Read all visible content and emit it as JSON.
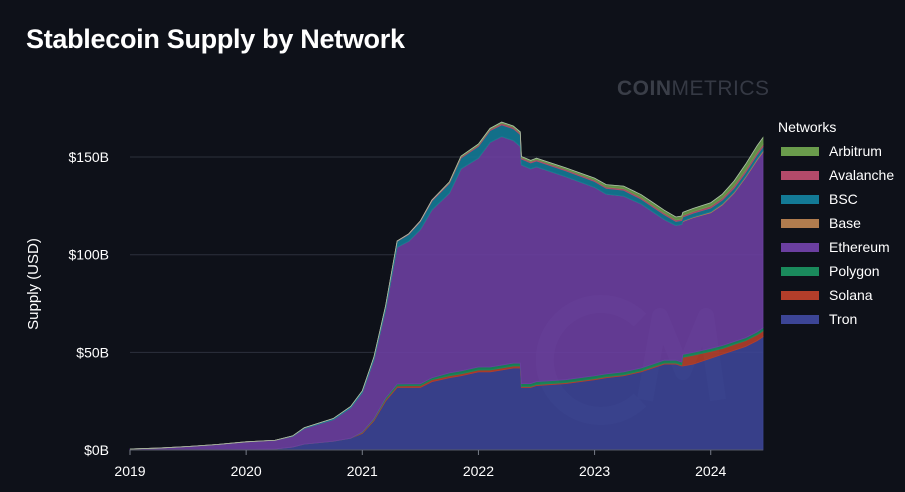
{
  "watermark": {
    "brand_bold": "COIN",
    "brand_light": "METRICS"
  },
  "chart_data": {
    "type": "area",
    "stacked": true,
    "title": "Stablecoin Supply by Network",
    "xlabel": "",
    "ylabel": "Supply (USD)",
    "x_ticks": [
      "2019",
      "2020",
      "2021",
      "2022",
      "2023",
      "2024"
    ],
    "y_ticks": [
      "$0B",
      "$50B",
      "$100B",
      "$150B"
    ],
    "y_tick_values": [
      0,
      50,
      100,
      150
    ],
    "ylim": [
      0,
      170
    ],
    "xlim": [
      2019.0,
      2024.45
    ],
    "grid": true,
    "legend_title": "Networks",
    "legend_placement": "right",
    "x": [
      2019.0,
      2019.25,
      2019.5,
      2019.75,
      2020.0,
      2020.25,
      2020.4,
      2020.5,
      2020.75,
      2020.9,
      2021.0,
      2021.1,
      2021.2,
      2021.3,
      2021.4,
      2021.5,
      2021.6,
      2021.75,
      2021.85,
      2022.0,
      2022.1,
      2022.2,
      2022.3,
      2022.36,
      2022.37,
      2022.45,
      2022.5,
      2022.75,
      2023.0,
      2023.1,
      2023.25,
      2023.4,
      2023.5,
      2023.6,
      2023.7,
      2023.75,
      2023.76,
      2023.85,
      2024.0,
      2024.1,
      2024.2,
      2024.3,
      2024.4,
      2024.45
    ],
    "series": [
      {
        "name": "Tron",
        "color": "#3c4596",
        "values": [
          0,
          0,
          0,
          0,
          0.2,
          0.5,
          1.5,
          3,
          4.5,
          6,
          8.5,
          15,
          25,
          32,
          32,
          32,
          35,
          37,
          38,
          40,
          40,
          41,
          42,
          42,
          32,
          32,
          33,
          34,
          36,
          37,
          38,
          40,
          42,
          44,
          44,
          43,
          43,
          44,
          47,
          49,
          51,
          53,
          56,
          58
        ]
      },
      {
        "name": "Solana",
        "color": "#b33e2a",
        "values": [
          0,
          0,
          0,
          0,
          0,
          0,
          0,
          0,
          0,
          0,
          0.5,
          0.6,
          0.8,
          0.8,
          0.9,
          0.9,
          1,
          1,
          1,
          1,
          1,
          1,
          1,
          1,
          0.5,
          0.5,
          0.5,
          0.5,
          0.5,
          0.5,
          0.5,
          0.5,
          0.5,
          0.5,
          0.5,
          0.5,
          4.5,
          4.5,
          3.5,
          3,
          3,
          3,
          3,
          3
        ]
      },
      {
        "name": "Polygon",
        "color": "#1a8a5c",
        "values": [
          0,
          0,
          0,
          0,
          0,
          0,
          0,
          0,
          0,
          0,
          0.3,
          0.5,
          0.8,
          1,
          1,
          1,
          1,
          1.5,
          1.5,
          1.5,
          1.5,
          1.5,
          1.5,
          1.5,
          1.5,
          1.5,
          1.5,
          1.5,
          1.5,
          1.5,
          1.5,
          1.5,
          1.5,
          1.5,
          1.5,
          1.5,
          1.5,
          1.5,
          1.5,
          1.5,
          1.5,
          1.5,
          1.5,
          1.5
        ]
      },
      {
        "name": "Ethereum",
        "color": "#6b3fa0",
        "values": [
          0.5,
          1.0,
          1.8,
          2.8,
          4.0,
          4.5,
          5.5,
          8.0,
          11.0,
          15.5,
          20.0,
          30.0,
          45.0,
          70.0,
          73.0,
          79.0,
          86.0,
          92.0,
          103.5,
          107.0,
          115.0,
          117.0,
          114.0,
          111.0,
          112.0,
          110.0,
          110.0,
          104.0,
          96.5,
          92.0,
          90.0,
          84.0,
          78.0,
          72.0,
          69.0,
          70.5,
          68.0,
          69.0,
          69.5,
          72.0,
          76.0,
          82.0,
          88.0,
          90.0
        ]
      },
      {
        "name": "Base",
        "color": "#b07c4e",
        "values": [
          0,
          0,
          0,
          0,
          0,
          0,
          0,
          0,
          0,
          0,
          0,
          0,
          0,
          0,
          0,
          0,
          0,
          0,
          0,
          0,
          0,
          0,
          0,
          0,
          0,
          0,
          0,
          0,
          0,
          0,
          0,
          0,
          0,
          0,
          0,
          0,
          0.3,
          0.3,
          0.4,
          0.5,
          0.5,
          0.6,
          0.7,
          0.7
        ]
      },
      {
        "name": "BSC",
        "color": "#137a96",
        "values": [
          0,
          0,
          0,
          0,
          0,
          0,
          0.2,
          0.4,
          0.6,
          0.8,
          1.0,
          1.5,
          2.0,
          3.0,
          3.5,
          4.0,
          4.5,
          5.0,
          5.5,
          6.0,
          6.0,
          6.0,
          6.0,
          6.0,
          3.0,
          3.0,
          3.0,
          3.0,
          3.0,
          3.0,
          3.0,
          2.5,
          2.5,
          2.5,
          2.0,
          2.0,
          2.0,
          2.0,
          2.0,
          2.0,
          2.0,
          2.0,
          2.0,
          2.0
        ]
      },
      {
        "name": "Avalanche",
        "color": "#b34a6a",
        "values": [
          0,
          0,
          0,
          0,
          0,
          0,
          0,
          0,
          0,
          0,
          0,
          0,
          0,
          0.2,
          0.3,
          0.4,
          0.5,
          0.5,
          0.6,
          0.7,
          0.7,
          0.8,
          0.8,
          0.8,
          0.7,
          0.7,
          0.7,
          0.7,
          0.7,
          0.7,
          0.8,
          0.8,
          0.8,
          0.8,
          0.8,
          0.8,
          0.8,
          0.8,
          1.0,
          1.0,
          1.2,
          1.2,
          1.2,
          1.2
        ]
      },
      {
        "name": "Arbitrum",
        "color": "#6a9c4c",
        "values": [
          0,
          0,
          0,
          0,
          0,
          0,
          0,
          0,
          0,
          0,
          0,
          0,
          0,
          0,
          0,
          0,
          0,
          0.3,
          0.4,
          0.5,
          0.5,
          0.6,
          0.6,
          0.6,
          0.6,
          0.6,
          0.7,
          0.8,
          1.0,
          1.2,
          1.3,
          1.5,
          1.5,
          1.5,
          1.5,
          1.5,
          1.6,
          1.6,
          1.7,
          2.0,
          2.5,
          3.0,
          3.5,
          3.6
        ]
      }
    ],
    "legend_order": [
      "Arbitrum",
      "Avalanche",
      "BSC",
      "Base",
      "Ethereum",
      "Polygon",
      "Solana",
      "Tron"
    ]
  }
}
